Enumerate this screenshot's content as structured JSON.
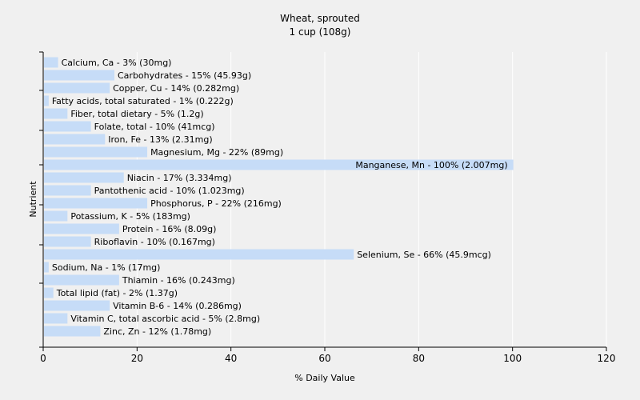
{
  "chart_data": {
    "type": "bar",
    "orientation": "horizontal",
    "title": "Wheat, sprouted",
    "subtitle": "1 cup (108g)",
    "xlabel": "% Daily Value",
    "ylabel": "Nutrient",
    "xlim": [
      0,
      120
    ],
    "xticks": [
      0,
      20,
      40,
      60,
      80,
      100,
      120
    ],
    "grid": true,
    "bar_color": "#c6dcf7",
    "grid_color": "#ffffff",
    "background_color": "#f0f0f0",
    "categories": [
      "Calcium, Ca",
      "Carbohydrates",
      "Copper, Cu",
      "Fatty acids, total saturated",
      "Fiber, total dietary",
      "Folate, total",
      "Iron, Fe",
      "Magnesium, Mg",
      "Manganese, Mn",
      "Niacin",
      "Pantothenic acid",
      "Phosphorus, P",
      "Potassium, K",
      "Protein",
      "Riboflavin",
      "Selenium, Se",
      "Sodium, Na",
      "Thiamin",
      "Total lipid (fat)",
      "Vitamin B-6",
      "Vitamin C, total ascorbic acid",
      "Zinc, Zn"
    ],
    "values": [
      3,
      15,
      14,
      1,
      5,
      10,
      13,
      22,
      100,
      17,
      10,
      22,
      5,
      16,
      10,
      66,
      1,
      16,
      2,
      14,
      5,
      12
    ],
    "labels": [
      "Calcium, Ca - 3% (30mg)",
      "Carbohydrates - 15% (45.93g)",
      "Copper, Cu - 14% (0.282mg)",
      "Fatty acids, total saturated - 1% (0.222g)",
      "Fiber, total dietary - 5% (1.2g)",
      "Folate, total - 10% (41mcg)",
      "Iron, Fe - 13% (2.31mg)",
      "Magnesium, Mg - 22% (89mg)",
      "Manganese, Mn - 100% (2.007mg)",
      "Niacin - 17% (3.334mg)",
      "Pantothenic acid - 10% (1.023mg)",
      "Phosphorus, P - 22% (216mg)",
      "Potassium, K - 5% (183mg)",
      "Protein - 16% (8.09g)",
      "Riboflavin - 10% (0.167mg)",
      "Selenium, Se - 66% (45.9mcg)",
      "Sodium, Na - 1% (17mg)",
      "Thiamin - 16% (0.243mg)",
      "Total lipid (fat) - 2% (1.37g)",
      "Vitamin B-6 - 14% (0.286mg)",
      "Vitamin C, total ascorbic acid - 5% (2.8mg)",
      "Zinc, Zn - 12% (1.78mg)"
    ]
  }
}
